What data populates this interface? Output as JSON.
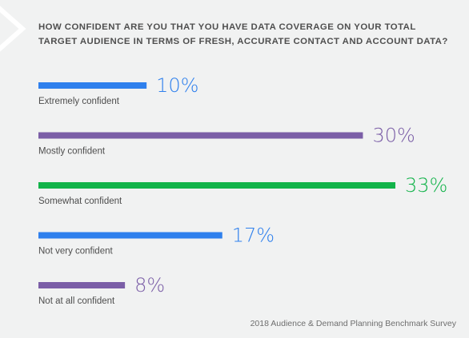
{
  "question": "HOW CONFIDENT ARE YOU THAT YOU HAVE DATA COVERAGE ON YOUR TOTAL TARGET AUDIENCE IN TERMS OF FRESH, ACCURATE CONTACT AND ACCOUNT DATA?",
  "footer": "2018 Audience & Demand Planning Benchmark Survey",
  "colors": {
    "background": "#f1f2f2",
    "blue": "#2f80ed",
    "purple": "#7b5ea7",
    "green": "#12b34a",
    "corner_decoration": "#ffffff"
  },
  "icons": {
    "corner": "chevron-outline-decoration"
  },
  "chart_data": {
    "type": "bar",
    "orientation": "horizontal",
    "unit": "%",
    "categories": [
      "Extremely confident",
      "Mostly confident",
      "Somewhat confident",
      "Not very confident",
      "Not at all confident"
    ],
    "values": [
      10,
      30,
      33,
      17,
      8
    ],
    "value_labels": [
      "10%",
      "30%",
      "33%",
      "17%",
      "8%"
    ],
    "bar_colors": [
      "#2f80ed",
      "#7b5ea7",
      "#12b34a",
      "#2f80ed",
      "#7b5ea7"
    ],
    "xlim": [
      0,
      33
    ],
    "grid": false,
    "legend": "none"
  }
}
